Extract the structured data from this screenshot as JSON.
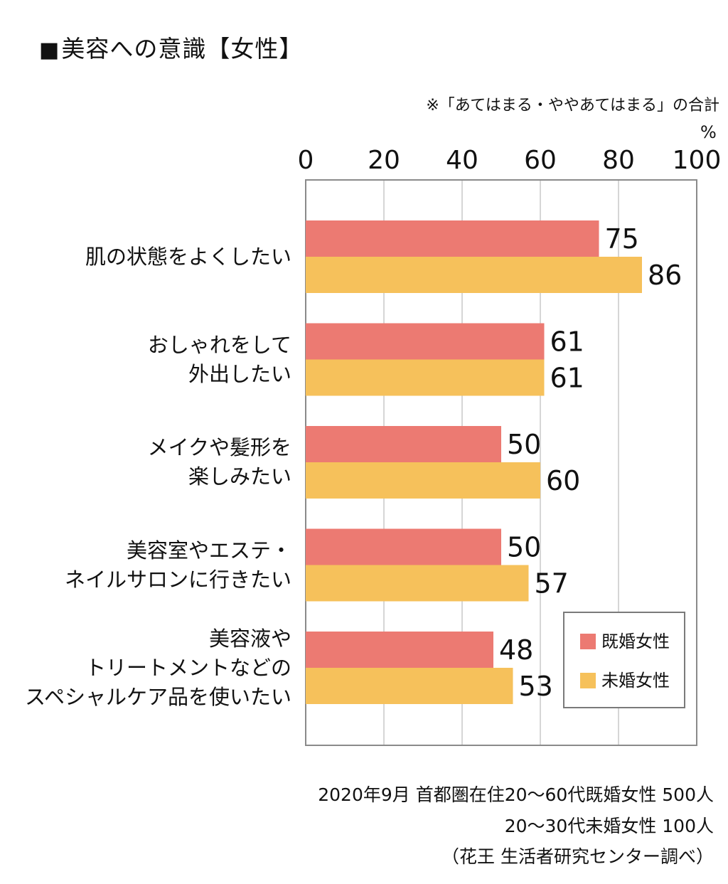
{
  "title_square": "■",
  "title": "美容への意識【女性】",
  "note": "※「あてはまる・ややあてはまる」の合計",
  "unit": "%",
  "chart_data": {
    "type": "bar",
    "orientation": "horizontal",
    "categories": [
      [
        "肌の状態をよくしたい"
      ],
      [
        "おしゃれをして",
        "外出したい"
      ],
      [
        "メイクや髪形を",
        "楽しみたい"
      ],
      [
        "美容室やエステ・",
        "ネイルサロンに行きたい"
      ],
      [
        "美容液や",
        "トリートメントなどの",
        "スペシャルケア品を使いたい"
      ]
    ],
    "series": [
      {
        "name": "既婚女性",
        "values": [
          75,
          61,
          50,
          50,
          48
        ],
        "color": "#ec7a72"
      },
      {
        "name": "未婚女性",
        "values": [
          86,
          61,
          60,
          57,
          53
        ],
        "color": "#f6c15b"
      }
    ],
    "xlim": [
      0,
      100
    ],
    "xticks": [
      0,
      20,
      40,
      60,
      80,
      100
    ],
    "grid": true,
    "legend_position": "bottom-right"
  },
  "footer": [
    "2020年9月 首都圏在住20〜60代既婚女性 500人",
    "20〜30代未婚女性 100人",
    "（花王 生活者研究センター調べ）"
  ]
}
